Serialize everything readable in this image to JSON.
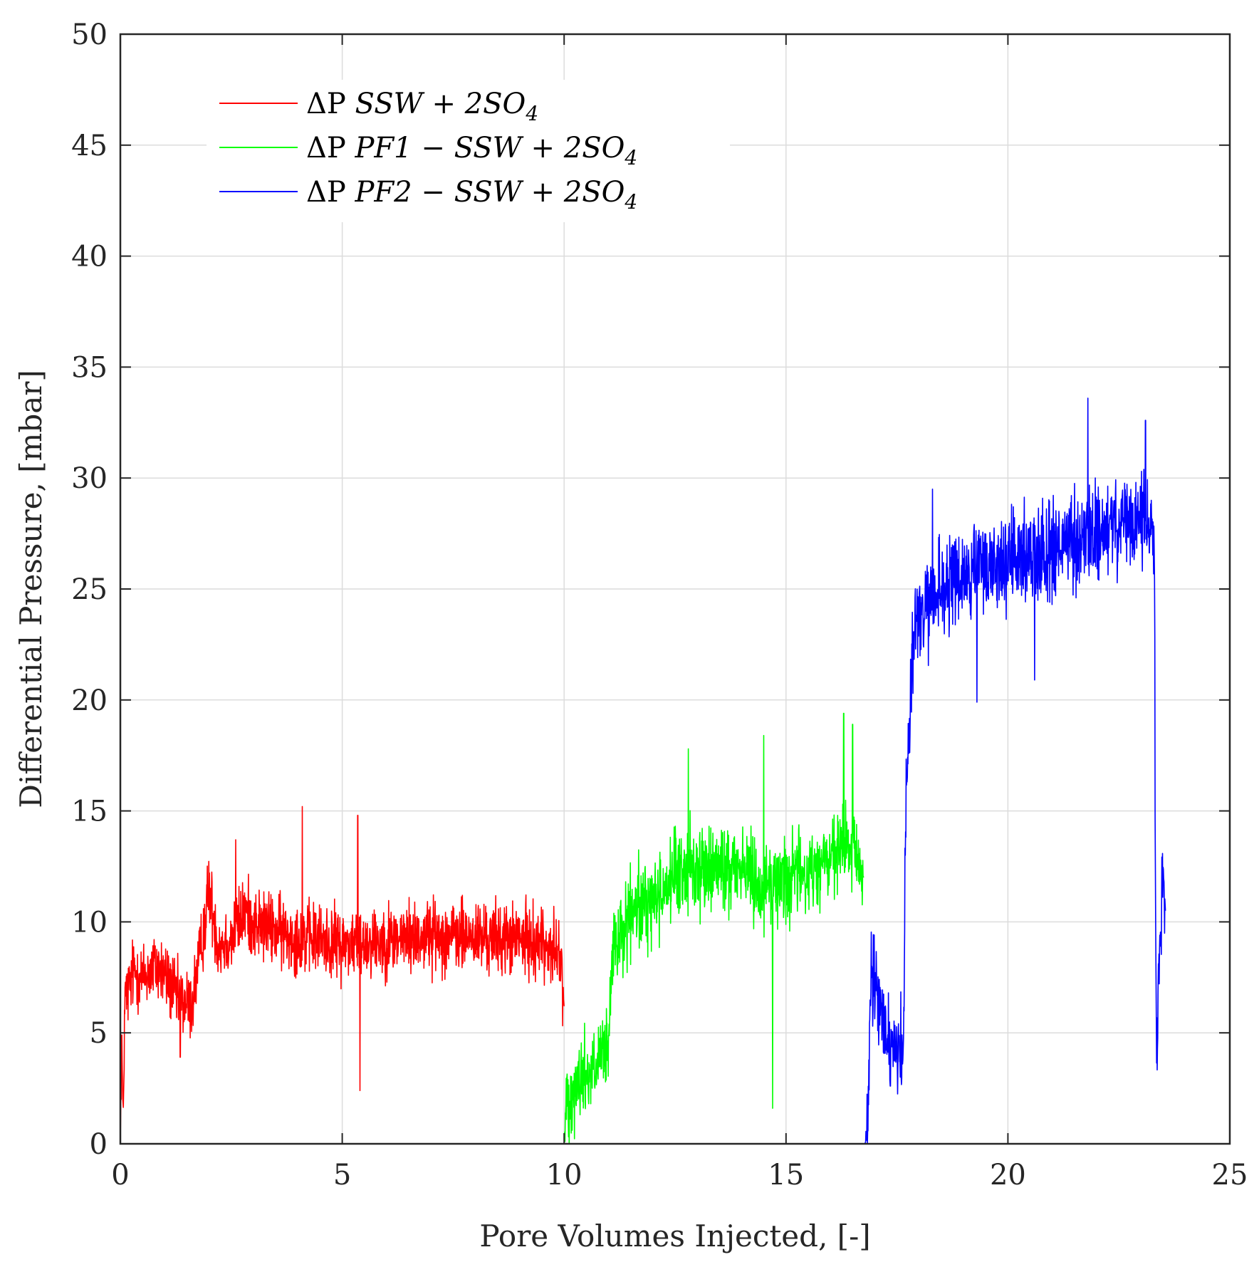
{
  "chart_data": {
    "type": "line",
    "xlabel": "Pore Volumes Injected, [-]",
    "ylabel": "Differential Pressure, [mbar]",
    "xlim": [
      0,
      25
    ],
    "ylim": [
      0,
      50
    ],
    "xticks": [
      0,
      5,
      10,
      15,
      20,
      25
    ],
    "yticks": [
      0,
      5,
      10,
      15,
      20,
      25,
      30,
      35,
      40,
      45,
      50
    ],
    "xtick_labels": [
      "0",
      "5",
      "10",
      "15",
      "20",
      "25"
    ],
    "ytick_labels": [
      "0",
      "5",
      "10",
      "15",
      "20",
      "25",
      "30",
      "35",
      "40",
      "45",
      "50"
    ],
    "grid": true,
    "legend_position": "top-left",
    "series": [
      {
        "name": "ΔP SSW + 2SO4",
        "legend_prefix": "ΔP",
        "legend_italic": "SSW + 2SO",
        "legend_subscript": "4",
        "color": "#ff0000",
        "x": [
          0,
          0.03,
          0.06,
          0.1,
          0.2,
          0.3,
          0.5,
          0.8,
          1.0,
          1.3,
          1.6,
          1.8,
          2.0,
          2.2,
          2.5,
          2.8,
          3.0,
          3.5,
          4.0,
          4.5,
          5.0,
          5.4,
          6.0,
          7.0,
          8.0,
          9.0,
          9.5,
          9.9,
          10.0
        ],
        "values": [
          0,
          5.2,
          0.5,
          6.5,
          7.0,
          7.8,
          7.5,
          8.0,
          7.6,
          6.5,
          6.2,
          8.5,
          11.5,
          9.0,
          9.2,
          10.5,
          10.0,
          9.6,
          9.3,
          9.2,
          9.0,
          9.1,
          9.2,
          9.4,
          9.3,
          9.2,
          9.1,
          8.5,
          6.2
        ],
        "noise": 1.5,
        "spikes": [
          [
            4.1,
            15.2
          ],
          [
            5.35,
            14.8
          ],
          [
            5.4,
            2.4
          ],
          [
            1.35,
            3.9
          ],
          [
            2.6,
            13.7
          ]
        ]
      },
      {
        "name": "ΔP PF1 − SSW + 2SO4",
        "legend_prefix": "ΔP",
        "legend_italic": "PF1 − SSW + 2SO",
        "legend_subscript": "4",
        "color": "#00ff00",
        "x": [
          10.0,
          10.05,
          10.2,
          10.5,
          10.8,
          11.0,
          11.1,
          11.3,
          11.6,
          12.0,
          12.5,
          13.0,
          13.5,
          14.0,
          14.5,
          15.0,
          15.5,
          16.0,
          16.5,
          16.75
        ],
        "values": [
          0,
          2.0,
          2.5,
          3.2,
          3.5,
          4.5,
          8.5,
          9.5,
          10.5,
          11.0,
          12.0,
          12.5,
          12.3,
          12.6,
          11.5,
          12.0,
          12.2,
          12.8,
          13.5,
          12.0
        ],
        "noise": 1.8,
        "spikes": [
          [
            14.7,
            1.6
          ],
          [
            14.5,
            18.4
          ],
          [
            16.3,
            19.4
          ],
          [
            12.8,
            17.8
          ],
          [
            16.5,
            18.9
          ]
        ]
      },
      {
        "name": "ΔP PF2 − SSW + 2SO4",
        "legend_prefix": "ΔP",
        "legend_italic": "PF2 − SSW + 2SO",
        "legend_subscript": "4",
        "color": "#0000ff",
        "x": [
          16.78,
          16.85,
          16.9,
          17.0,
          17.2,
          17.5,
          17.65,
          17.7,
          17.8,
          17.9,
          18.2,
          18.5,
          19.0,
          19.5,
          20.0,
          20.5,
          21.0,
          21.5,
          22.0,
          22.5,
          23.0,
          23.3,
          23.32,
          23.35,
          23.4,
          23.5,
          23.55
        ],
        "values": [
          0,
          0.5,
          7.0,
          7.3,
          5.0,
          4.5,
          4.0,
          16.0,
          20.0,
          23.5,
          24.0,
          25.0,
          25.5,
          26.0,
          26.2,
          26.5,
          26.8,
          27.0,
          27.5,
          27.8,
          28.0,
          27.8,
          15.0,
          3.0,
          8.0,
          12.5,
          10.5
        ],
        "noise": 2.0,
        "spikes": [
          [
            21.8,
            33.6
          ],
          [
            23.1,
            32.6
          ],
          [
            18.3,
            29.5
          ],
          [
            19.3,
            19.9
          ],
          [
            17.35,
            2.6
          ],
          [
            20.6,
            20.9
          ]
        ]
      }
    ]
  }
}
